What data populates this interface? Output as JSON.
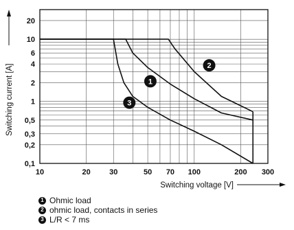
{
  "chart_data": {
    "type": "line",
    "xlabel": "Switching voltage [V]",
    "ylabel": "Switching current [A]",
    "x_scale": "log",
    "y_scale": "log",
    "xlim": [
      10,
      300
    ],
    "ylim": [
      0.1,
      30
    ],
    "x_ticks": [
      10,
      20,
      30,
      50,
      70,
      100,
      200,
      300
    ],
    "x_tick_labels": [
      "10",
      "20",
      "30",
      "50",
      "70",
      "100",
      "200",
      "300"
    ],
    "y_ticks": [
      0.1,
      0.2,
      0.3,
      0.5,
      1,
      2,
      4,
      6,
      10,
      20
    ],
    "y_tick_labels": [
      "0,1",
      "0,2",
      "0,3",
      "0,5",
      "1",
      "2",
      "4",
      "6",
      "10",
      "20"
    ],
    "grid": true,
    "series": [
      {
        "marker": "1",
        "name": "Ohmic load",
        "points": [
          [
            10,
            10
          ],
          [
            36,
            10
          ],
          [
            40,
            6
          ],
          [
            50,
            3.5
          ],
          [
            70,
            1.9
          ],
          [
            100,
            1.1
          ],
          [
            150,
            0.65
          ],
          [
            240,
            0.5
          ]
        ]
      },
      {
        "marker": "2",
        "name": "ohmic load, contacts in series",
        "points": [
          [
            10,
            10
          ],
          [
            68,
            10
          ],
          [
            75,
            7
          ],
          [
            100,
            3
          ],
          [
            150,
            1.2
          ],
          [
            200,
            0.85
          ],
          [
            240,
            0.68
          ]
        ]
      },
      {
        "marker": "3",
        "name": "L/R < 7 ms",
        "points": [
          [
            10,
            10
          ],
          [
            30,
            10
          ],
          [
            32,
            4
          ],
          [
            35,
            2
          ],
          [
            40,
            1.2
          ],
          [
            50,
            0.8
          ],
          [
            70,
            0.5
          ],
          [
            100,
            0.33
          ],
          [
            150,
            0.2
          ],
          [
            240,
            0.1
          ]
        ]
      }
    ],
    "envelope": {
      "x": 240,
      "y_range": [
        0.1,
        0.68
      ]
    },
    "legend_position": "bottom-left"
  }
}
